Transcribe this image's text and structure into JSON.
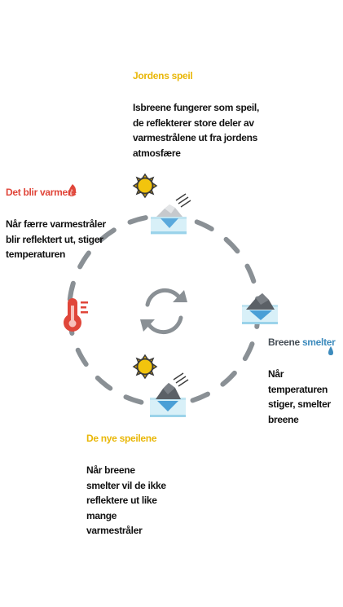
{
  "colors": {
    "yellow": "#e9b708",
    "red": "#e0463a",
    "dark": "#474f57",
    "blue": "#3d8bbd",
    "ring": "#8a9095"
  },
  "top": {
    "title": "Jordens speil",
    "text": "Isbreene fungerer som speil, de reflekterer store deler av varmestrålene ut fra jordens atmosfære"
  },
  "left": {
    "title": "Det blir varmere",
    "text": "Når færre varmestråler blir reflektert ut, stiger temperaturen"
  },
  "right": {
    "title_part1": "Breene",
    "title_part2": "smelter",
    "text": "Når temperaturen stiger, smelter breene"
  },
  "bottom": {
    "title": "De nye speilene",
    "text": "Når breene smelter vil de ikke reflektere ut like mange varmestråler"
  },
  "icons": {
    "center": "cycle-arrows-icon",
    "top": "sun-iceberg-icon",
    "left": "thermometer-icon",
    "right": "melting-iceberg-icon",
    "bottom": "sun-small-iceberg-icon"
  }
}
